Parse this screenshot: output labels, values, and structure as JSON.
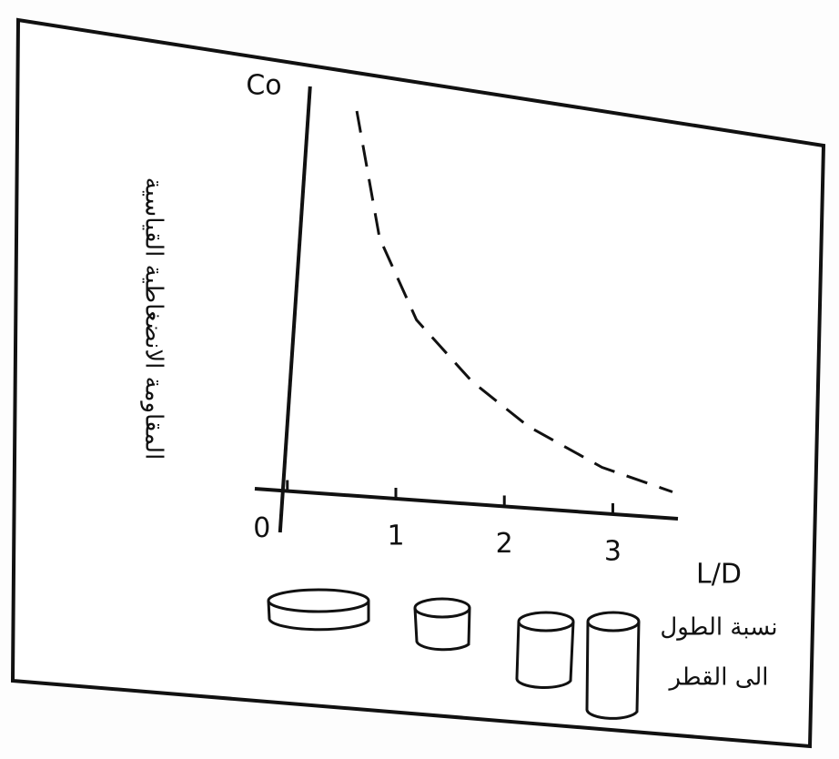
{
  "chart_data": {
    "type": "line",
    "y_label": "Co",
    "y_description": "المقاومة الانضغاطية القياسية",
    "x_label": "L/D",
    "x_description": [
      "نسبة الطول",
      "الى القطر"
    ],
    "x": [
      0.64,
      0.85,
      1.19,
      1.7,
      2.22,
      2.9,
      3.55
    ],
    "y": [
      0.94,
      0.63,
      0.43,
      0.28,
      0.17,
      0.07,
      0.01
    ],
    "xlim": [
      -0.3,
      3.6
    ],
    "ylim": [
      0,
      1
    ],
    "xticks": [
      0,
      1,
      2,
      3
    ],
    "color": "#111111",
    "dashed": true
  }
}
